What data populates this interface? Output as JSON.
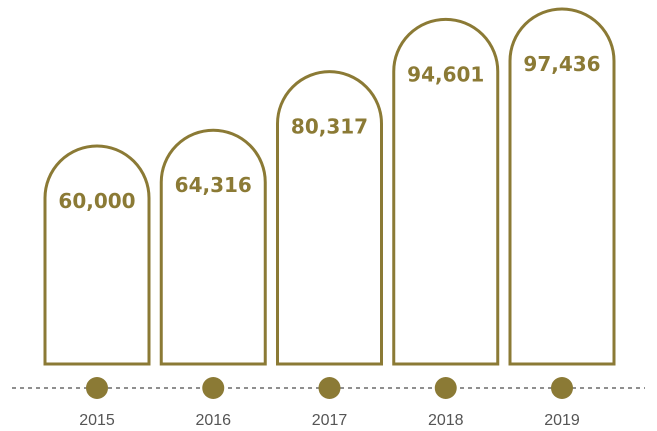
{
  "chart_data": {
    "type": "bar",
    "categories": [
      "2015",
      "2016",
      "2017",
      "2018",
      "2019"
    ],
    "values": [
      60000,
      64316,
      80317,
      94601,
      97436
    ],
    "value_labels": [
      "60,000",
      "64,316",
      "80,317",
      "94,601",
      "97,436"
    ],
    "title": "",
    "xlabel": "",
    "ylabel": "",
    "grid": false,
    "legend": "none"
  },
  "colors": {
    "accent": "#8B7A35",
    "timeline": "#8F8F8F",
    "year_text": "#555555"
  }
}
